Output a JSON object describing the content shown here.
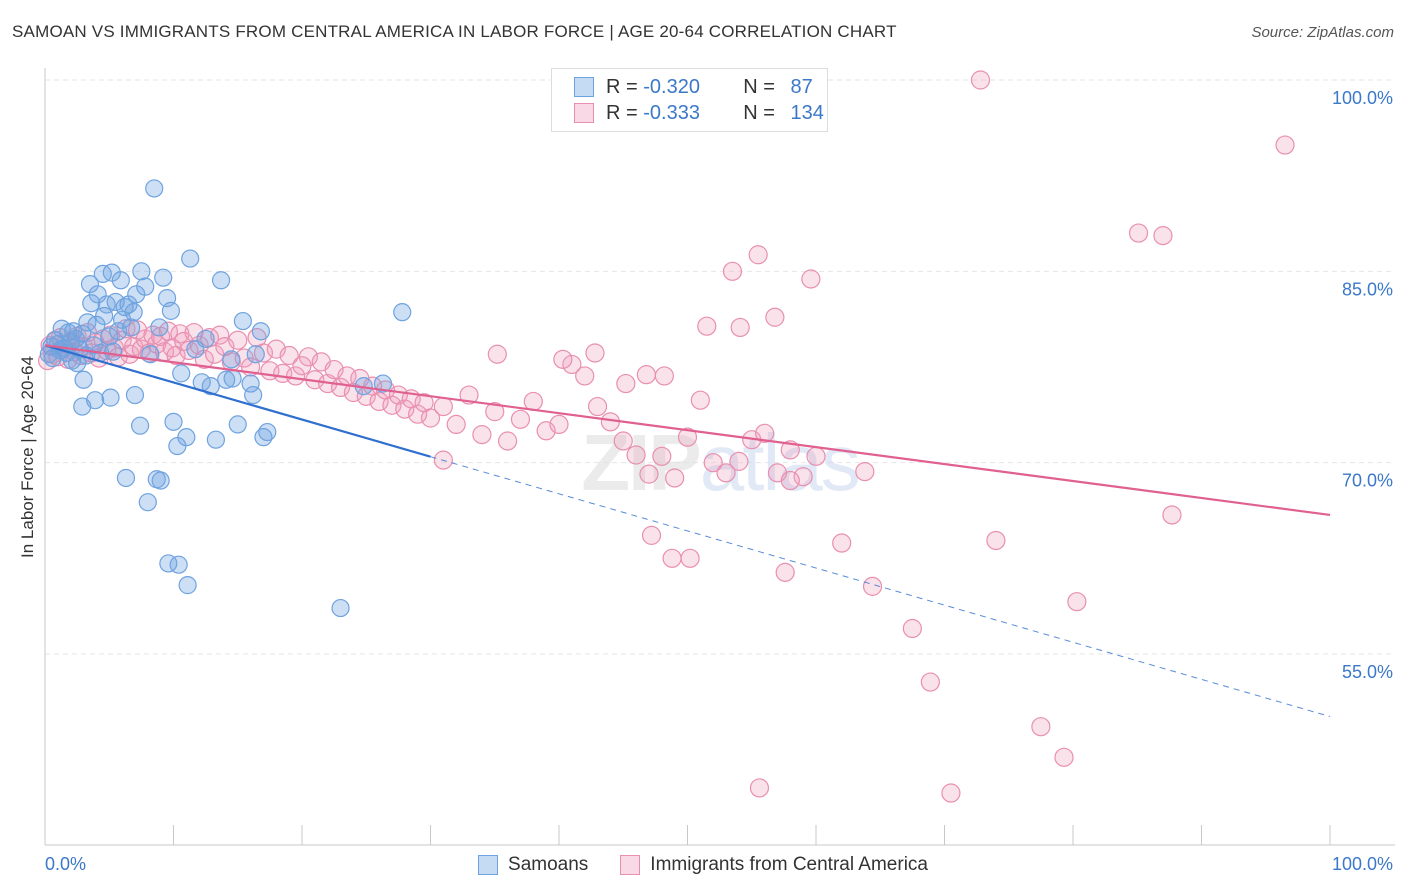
{
  "header": {
    "title": "SAMOAN VS IMMIGRANTS FROM CENTRAL AMERICA IN LABOR FORCE | AGE 20-64 CORRELATION CHART",
    "source": "Source: ZipAtlas.com"
  },
  "legend_top": {
    "rows": [
      {
        "r_label": "R = ",
        "r_value": "-0.320",
        "n_label": "N = ",
        "n_value": "87"
      },
      {
        "r_label": "R = ",
        "r_value": "-0.333",
        "n_label": "N = ",
        "n_value": "134"
      }
    ]
  },
  "legend_bottom": {
    "items": [
      {
        "label": "Samoans"
      },
      {
        "label": "Immigrants from Central America"
      }
    ]
  },
  "colors": {
    "blue": "#6fa3e0",
    "blue_fill": "rgba(111,163,224,0.35)",
    "blue_line": "#2f6fcf",
    "pink": "#e98fb0",
    "pink_fill": "rgba(240,160,190,0.30)",
    "pink_line": "#e0608f",
    "tick_text": "#3b78c9",
    "grid": "#e6e6e6"
  },
  "chart_data": {
    "type": "scatter",
    "title": "SAMOAN VS IMMIGRANTS FROM CENTRAL AMERICA IN LABOR FORCE | AGE 20-64 CORRELATION CHART",
    "xlabel": "",
    "ylabel": "In Labor Force | Age 20-64",
    "xlim": [
      0,
      100
    ],
    "ylim": [
      40,
      101.5
    ],
    "x_tick_labels": [
      "0.0%",
      "100.0%"
    ],
    "y_ticks": [
      55,
      70,
      85,
      100
    ],
    "y_tick_labels": [
      "55.0%",
      "70.0%",
      "85.0%",
      "100.0%"
    ],
    "grid": true,
    "legend_position": "top-center",
    "watermark": "ZIPatlas",
    "series": [
      {
        "name": "Samoans",
        "R": -0.32,
        "N": 87,
        "trend": {
          "x0": 0,
          "y0": 79.2,
          "x_solid_end": 30,
          "x1": 100,
          "y1": 50.1
        },
        "points": [
          [
            0.3,
            78.5
          ],
          [
            0.5,
            79.1
          ],
          [
            0.6,
            78.2
          ],
          [
            0.8,
            79.6
          ],
          [
            1.0,
            79.3
          ],
          [
            1.2,
            78.8
          ],
          [
            1.3,
            80.5
          ],
          [
            1.5,
            79.0
          ],
          [
            1.7,
            78.6
          ],
          [
            1.8,
            80.2
          ],
          [
            2.0,
            79.4
          ],
          [
            2.1,
            78.0
          ],
          [
            2.2,
            80.3
          ],
          [
            2.4,
            79.7
          ],
          [
            2.5,
            77.8
          ],
          [
            2.7,
            78.9
          ],
          [
            2.9,
            80.1
          ],
          [
            3.0,
            76.5
          ],
          [
            3.2,
            78.4
          ],
          [
            3.3,
            81.0
          ],
          [
            3.5,
            84.0
          ],
          [
            3.6,
            82.5
          ],
          [
            3.8,
            79.2
          ],
          [
            4.0,
            80.8
          ],
          [
            4.1,
            83.2
          ],
          [
            4.3,
            78.6
          ],
          [
            4.5,
            84.8
          ],
          [
            4.6,
            81.5
          ],
          [
            4.8,
            82.4
          ],
          [
            5.0,
            79.9
          ],
          [
            5.2,
            84.9
          ],
          [
            5.3,
            78.7
          ],
          [
            5.5,
            82.6
          ],
          [
            5.7,
            80.3
          ],
          [
            5.9,
            84.3
          ],
          [
            6.0,
            81.2
          ],
          [
            6.2,
            82.2
          ],
          [
            6.5,
            82.4
          ],
          [
            6.7,
            80.6
          ],
          [
            6.9,
            81.8
          ],
          [
            7.1,
            83.2
          ],
          [
            7.5,
            85.0
          ],
          [
            7.8,
            83.8
          ],
          [
            8.2,
            78.5
          ],
          [
            8.5,
            91.5
          ],
          [
            8.9,
            80.6
          ],
          [
            9.2,
            84.5
          ],
          [
            9.5,
            82.9
          ],
          [
            9.8,
            81.9
          ],
          [
            10.0,
            73.2
          ],
          [
            10.3,
            71.3
          ],
          [
            10.6,
            77.0
          ],
          [
            11.0,
            72.0
          ],
          [
            11.3,
            86.0
          ],
          [
            11.7,
            78.9
          ],
          [
            12.2,
            76.3
          ],
          [
            12.5,
            79.7
          ],
          [
            12.9,
            76.0
          ],
          [
            13.3,
            71.8
          ],
          [
            13.7,
            84.3
          ],
          [
            14.1,
            76.5
          ],
          [
            14.5,
            78.1
          ],
          [
            15.0,
            73.0
          ],
          [
            15.4,
            81.1
          ],
          [
            16.0,
            76.2
          ],
          [
            16.4,
            78.5
          ],
          [
            16.8,
            80.3
          ],
          [
            17.3,
            72.4
          ],
          [
            2.9,
            74.4
          ],
          [
            3.9,
            74.9
          ],
          [
            5.1,
            75.1
          ],
          [
            6.3,
            68.8
          ],
          [
            7.0,
            75.3
          ],
          [
            7.4,
            72.9
          ],
          [
            8.0,
            66.9
          ],
          [
            8.7,
            68.7
          ],
          [
            9.0,
            68.6
          ],
          [
            9.6,
            62.1
          ],
          [
            10.4,
            62.0
          ],
          [
            11.1,
            60.4
          ],
          [
            14.6,
            76.6
          ],
          [
            16.2,
            75.3
          ],
          [
            17.0,
            72.0
          ],
          [
            23.0,
            58.6
          ],
          [
            24.8,
            76.0
          ],
          [
            26.3,
            76.2
          ],
          [
            27.8,
            81.8
          ]
        ]
      },
      {
        "name": "Immigrants from Central America",
        "R": -0.333,
        "N": 134,
        "trend": {
          "x0": 0,
          "y0": 79.2,
          "x1": 100,
          "y1": 65.9
        },
        "points": [
          [
            0.2,
            78.0
          ],
          [
            0.4,
            79.2
          ],
          [
            0.6,
            78.5
          ],
          [
            0.8,
            79.6
          ],
          [
            1.0,
            78.3
          ],
          [
            1.2,
            79.8
          ],
          [
            1.4,
            78.9
          ],
          [
            1.6,
            79.3
          ],
          [
            1.8,
            78.1
          ],
          [
            2.0,
            79.5
          ],
          [
            2.3,
            78.7
          ],
          [
            2.5,
            79.9
          ],
          [
            2.8,
            78.4
          ],
          [
            3.0,
            79.1
          ],
          [
            3.3,
            80.2
          ],
          [
            3.6,
            78.6
          ],
          [
            3.9,
            79.4
          ],
          [
            4.2,
            78.2
          ],
          [
            4.5,
            79.7
          ],
          [
            4.8,
            78.8
          ],
          [
            5.1,
            80.0
          ],
          [
            5.4,
            79.0
          ],
          [
            5.7,
            78.3
          ],
          [
            6.0,
            79.6
          ],
          [
            6.3,
            80.5
          ],
          [
            6.6,
            78.5
          ],
          [
            6.9,
            79.1
          ],
          [
            7.2,
            80.4
          ],
          [
            7.5,
            78.9
          ],
          [
            7.8,
            79.7
          ],
          [
            8.1,
            78.6
          ],
          [
            8.4,
            80.0
          ],
          [
            8.7,
            79.3
          ],
          [
            9.0,
            79.9
          ],
          [
            9.3,
            78.7
          ],
          [
            9.6,
            80.3
          ],
          [
            9.9,
            79.0
          ],
          [
            10.2,
            78.4
          ],
          [
            10.5,
            80.1
          ],
          [
            10.8,
            79.5
          ],
          [
            11.2,
            78.8
          ],
          [
            11.6,
            80.2
          ],
          [
            12.0,
            79.2
          ],
          [
            12.4,
            78.1
          ],
          [
            12.8,
            79.8
          ],
          [
            13.2,
            78.5
          ],
          [
            13.6,
            80.0
          ],
          [
            14.0,
            79.1
          ],
          [
            14.5,
            77.9
          ],
          [
            15.0,
            79.6
          ],
          [
            15.5,
            78.2
          ],
          [
            16.0,
            77.5
          ],
          [
            16.5,
            79.8
          ],
          [
            17.0,
            78.6
          ],
          [
            17.5,
            77.2
          ],
          [
            18.0,
            78.9
          ],
          [
            18.5,
            77.0
          ],
          [
            19.0,
            78.4
          ],
          [
            19.5,
            76.8
          ],
          [
            20.0,
            77.6
          ],
          [
            20.5,
            78.3
          ],
          [
            21.0,
            76.5
          ],
          [
            21.5,
            77.9
          ],
          [
            22.0,
            76.2
          ],
          [
            22.5,
            77.3
          ],
          [
            23.0,
            75.9
          ],
          [
            23.5,
            76.8
          ],
          [
            24.0,
            75.5
          ],
          [
            24.5,
            76.6
          ],
          [
            25.0,
            75.2
          ],
          [
            25.5,
            76.0
          ],
          [
            26.0,
            74.8
          ],
          [
            26.5,
            75.7
          ],
          [
            27.0,
            74.5
          ],
          [
            27.5,
            75.3
          ],
          [
            28.0,
            74.2
          ],
          [
            28.5,
            75.0
          ],
          [
            29.0,
            73.8
          ],
          [
            29.5,
            74.7
          ],
          [
            30.0,
            73.5
          ],
          [
            31.0,
            74.4
          ],
          [
            32.0,
            73.0
          ],
          [
            33.0,
            75.3
          ],
          [
            34.0,
            72.2
          ],
          [
            35.0,
            74.0
          ],
          [
            36.0,
            71.7
          ],
          [
            37.0,
            73.4
          ],
          [
            38.0,
            74.8
          ],
          [
            39.0,
            72.5
          ],
          [
            40.0,
            73.0
          ],
          [
            41.0,
            77.7
          ],
          [
            42.0,
            76.8
          ],
          [
            43.0,
            74.4
          ],
          [
            44.0,
            73.2
          ],
          [
            45.0,
            71.7
          ],
          [
            46.0,
            70.6
          ],
          [
            47.0,
            69.1
          ],
          [
            48.0,
            70.5
          ],
          [
            49.0,
            68.8
          ],
          [
            50.0,
            72.0
          ],
          [
            51.0,
            74.9
          ],
          [
            52.0,
            70.0
          ],
          [
            53.0,
            69.2
          ],
          [
            54.0,
            70.1
          ],
          [
            55.0,
            71.8
          ],
          [
            56.0,
            72.3
          ],
          [
            57.0,
            69.2
          ],
          [
            58.0,
            71.0
          ],
          [
            59.0,
            68.9
          ],
          [
            60.0,
            70.5
          ],
          [
            31.0,
            70.2
          ],
          [
            35.2,
            78.5
          ],
          [
            40.3,
            78.1
          ],
          [
            42.8,
            78.6
          ],
          [
            45.2,
            76.2
          ],
          [
            46.8,
            76.9
          ],
          [
            48.2,
            76.8
          ],
          [
            51.5,
            80.7
          ],
          [
            53.5,
            85.0
          ],
          [
            54.1,
            80.6
          ],
          [
            55.5,
            86.3
          ],
          [
            56.8,
            81.4
          ],
          [
            58.0,
            68.6
          ],
          [
            59.6,
            84.4
          ],
          [
            62.0,
            63.7
          ],
          [
            63.8,
            69.3
          ],
          [
            64.4,
            60.3
          ],
          [
            67.5,
            57.0
          ],
          [
            68.9,
            52.8
          ],
          [
            74.0,
            63.9
          ],
          [
            77.5,
            49.3
          ],
          [
            79.3,
            46.9
          ],
          [
            80.3,
            59.1
          ],
          [
            85.1,
            88.0
          ],
          [
            87.7,
            65.9
          ],
          [
            87.0,
            87.8
          ],
          [
            96.5,
            94.9
          ],
          [
            72.8,
            100.0
          ],
          [
            55.6,
            44.5
          ],
          [
            70.5,
            44.1
          ],
          [
            47.2,
            64.3
          ],
          [
            48.8,
            62.5
          ],
          [
            50.2,
            62.5
          ],
          [
            57.6,
            61.4
          ]
        ]
      }
    ]
  }
}
